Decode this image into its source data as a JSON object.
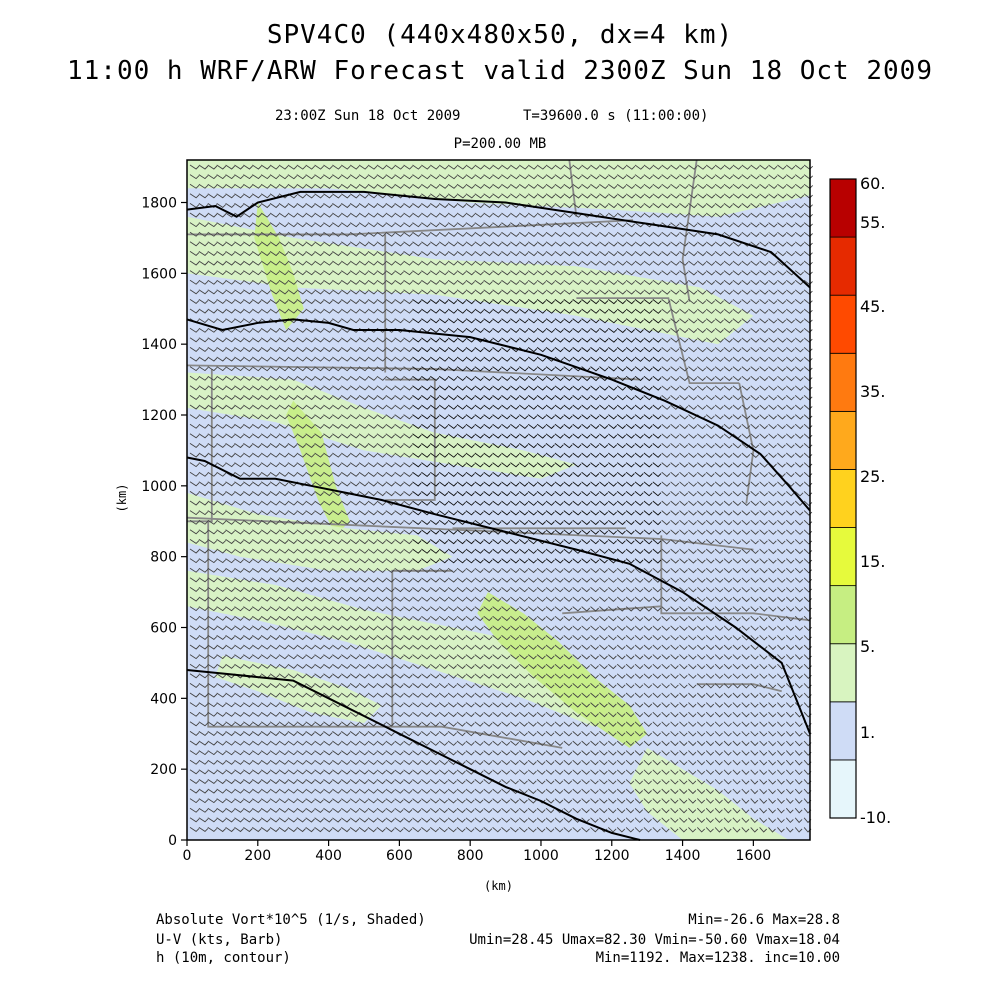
{
  "header": {
    "title_line1": "SPV4C0 (440x480x50, dx=4 km)",
    "title_line2": "11:00 h WRF/ARW Forecast valid 2300Z Sun 18 Oct 2009",
    "valid_time": "23:00Z Sun 18 Oct 2009",
    "model_time": "T=39600.0 s (11:00:00)",
    "level": "P=200.00 MB"
  },
  "chart_data": {
    "type": "heatmap",
    "xlabel": "(km)",
    "ylabel": "(km)",
    "xlim": [
      0,
      1760
    ],
    "ylim": [
      0,
      1920
    ],
    "xticks": [
      0,
      200,
      400,
      600,
      800,
      1000,
      1200,
      1400,
      1600
    ],
    "yticks": [
      0,
      200,
      400,
      600,
      800,
      1000,
      1200,
      1400,
      1600,
      1800
    ],
    "colorbar": {
      "levels": [
        -10,
        1,
        5,
        15,
        25,
        35,
        45,
        55,
        60
      ],
      "labels": [
        "60.",
        "55.",
        "45.",
        "35.",
        "25.",
        "15.",
        "5.",
        "1.",
        "-10."
      ],
      "colors": [
        "#e6f6fb",
        "#cfdcf6",
        "#d8f4c0",
        "#c6ee82",
        "#e6fa3c",
        "#ffd21e",
        "#ffa91c",
        "#ff7a10",
        "#ff4a00",
        "#e62a00",
        "#b80000"
      ]
    },
    "fields": {
      "vorticity": "Absolute Vort*10^5 (1/s, Shaded)",
      "wind": "U-V (kts, Barb)",
      "height": "h (10m, contour)"
    },
    "height_contours": [
      {
        "points": [
          [
            0,
            1780
          ],
          [
            80,
            1790
          ],
          [
            140,
            1760
          ],
          [
            200,
            1800
          ],
          [
            320,
            1830
          ],
          [
            500,
            1830
          ],
          [
            700,
            1810
          ],
          [
            900,
            1800
          ],
          [
            1100,
            1770
          ],
          [
            1300,
            1740
          ],
          [
            1500,
            1710
          ],
          [
            1650,
            1660
          ],
          [
            1760,
            1560
          ]
        ]
      },
      {
        "points": [
          [
            0,
            1470
          ],
          [
            100,
            1440
          ],
          [
            200,
            1460
          ],
          [
            300,
            1470
          ],
          [
            400,
            1460
          ],
          [
            470,
            1440
          ],
          [
            600,
            1440
          ],
          [
            800,
            1420
          ],
          [
            1000,
            1370
          ],
          [
            1200,
            1300
          ],
          [
            1350,
            1240
          ],
          [
            1500,
            1170
          ],
          [
            1620,
            1090
          ],
          [
            1700,
            1000
          ],
          [
            1760,
            930
          ]
        ]
      },
      {
        "points": [
          [
            0,
            1080
          ],
          [
            50,
            1070
          ],
          [
            150,
            1020
          ],
          [
            250,
            1020
          ],
          [
            350,
            1000
          ],
          [
            450,
            980
          ],
          [
            550,
            960
          ],
          [
            700,
            920
          ],
          [
            900,
            870
          ],
          [
            1100,
            820
          ],
          [
            1250,
            780
          ],
          [
            1400,
            700
          ],
          [
            1550,
            600
          ],
          [
            1680,
            500
          ],
          [
            1760,
            300
          ]
        ]
      },
      {
        "points": [
          [
            0,
            480
          ],
          [
            100,
            470
          ],
          [
            200,
            460
          ],
          [
            300,
            450
          ],
          [
            400,
            400
          ],
          [
            500,
            350
          ],
          [
            600,
            300
          ],
          [
            700,
            250
          ],
          [
            800,
            200
          ],
          [
            900,
            150
          ],
          [
            1000,
            110
          ],
          [
            1100,
            60
          ],
          [
            1200,
            20
          ],
          [
            1280,
            0
          ]
        ]
      }
    ]
  },
  "footer": {
    "line1_left": "Absolute Vort*10^5 (1/s, Shaded)",
    "line1_right": "Min=-26.6 Max=28.8",
    "line2_left": "U-V (kts, Barb)",
    "line2_right": "Umin=28.45 Umax=82.30 Vmin=-50.60 Vmax=18.04",
    "line3_left": "h (10m, contour)",
    "line3_right": "Min=1192. Max=1238. inc=10.00"
  }
}
